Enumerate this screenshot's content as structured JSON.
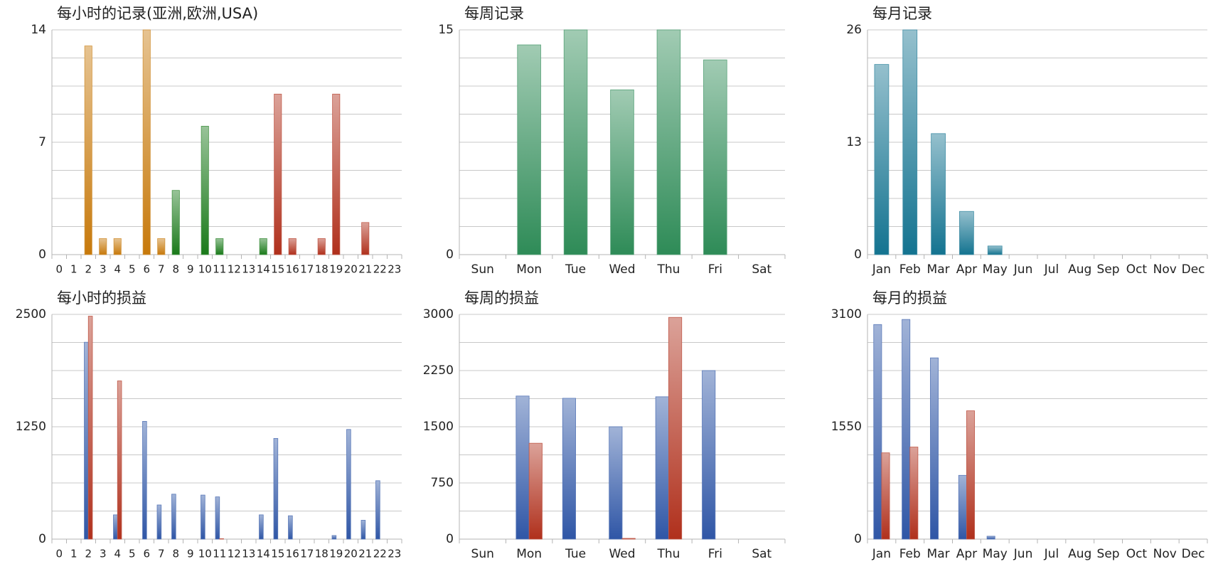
{
  "chart_data": [
    {
      "id": "hourly-records",
      "type": "bar",
      "title": "每小时的记录(亚洲,欧洲,USA)",
      "categories": [
        "0",
        "1",
        "2",
        "3",
        "4",
        "5",
        "6",
        "7",
        "8",
        "9",
        "10",
        "11",
        "12",
        "13",
        "14",
        "15",
        "16",
        "17",
        "18",
        "19",
        "20",
        "21",
        "22",
        "23"
      ],
      "yticks": [
        "0",
        "7",
        "14"
      ],
      "ylim": [
        0,
        14
      ],
      "grid": true,
      "colored_by_category": true,
      "colors": {
        "asia": "#c7790b",
        "europe": "#1a7a1a",
        "usa": "#b0301c"
      },
      "category_colors": [
        "asia",
        "asia",
        "asia",
        "asia",
        "asia",
        "asia",
        "asia",
        "asia",
        "europe",
        "europe",
        "europe",
        "europe",
        "europe",
        "europe",
        "europe",
        "usa",
        "usa",
        "usa",
        "usa",
        "usa",
        "usa",
        "usa",
        "usa",
        "usa"
      ],
      "values": [
        0,
        0,
        13,
        1,
        1,
        0,
        14,
        1,
        4,
        0,
        8,
        1,
        0,
        0,
        1,
        10,
        1,
        0,
        1,
        10,
        0,
        2,
        0,
        0
      ]
    },
    {
      "id": "weekly-records",
      "type": "bar",
      "title": "每周记录",
      "categories": [
        "Sun",
        "Mon",
        "Tue",
        "Wed",
        "Thu",
        "Fri",
        "Sat"
      ],
      "yticks": [
        "0",
        "15"
      ],
      "ylim": [
        0,
        15
      ],
      "grid": true,
      "color": "#2e8b57",
      "values": [
        0,
        14,
        15,
        11,
        15,
        13,
        0
      ]
    },
    {
      "id": "monthly-records",
      "type": "bar",
      "title": "每月记录",
      "categories": [
        "Jan",
        "Feb",
        "Mar",
        "Apr",
        "May",
        "Jun",
        "Jul",
        "Aug",
        "Sep",
        "Oct",
        "Nov",
        "Dec"
      ],
      "yticks": [
        "0",
        "13",
        "26"
      ],
      "ylim": [
        0,
        26
      ],
      "grid": true,
      "color": "#137390",
      "values": [
        22,
        26,
        14,
        5,
        1,
        0,
        0,
        0,
        0,
        0,
        0,
        0
      ]
    },
    {
      "id": "hourly-profit",
      "type": "bar",
      "title": "每小时的损益",
      "categories": [
        "0",
        "1",
        "2",
        "3",
        "4",
        "5",
        "6",
        "7",
        "8",
        "9",
        "10",
        "11",
        "12",
        "13",
        "14",
        "15",
        "16",
        "17",
        "18",
        "19",
        "20",
        "21",
        "22",
        "23"
      ],
      "yticks": [
        "0",
        "1250",
        "2500"
      ],
      "ylim": [
        0,
        2500
      ],
      "grid": true,
      "colors": {
        "blue": "#2f56a6",
        "red": "#b0301c"
      },
      "series": [
        {
          "color": "blue",
          "values": [
            0,
            0,
            2190,
            0,
            270,
            0,
            1310,
            380,
            500,
            0,
            490,
            470,
            0,
            0,
            270,
            1120,
            260,
            0,
            0,
            40,
            1220,
            210,
            650,
            0
          ]
        },
        {
          "color": "red",
          "values": [
            0,
            0,
            2480,
            0,
            1760,
            0,
            0,
            0,
            0,
            0,
            0,
            5,
            0,
            0,
            0,
            0,
            0,
            0,
            0,
            0,
            0,
            0,
            0,
            0
          ]
        }
      ]
    },
    {
      "id": "weekly-profit",
      "type": "bar",
      "title": "每周的损益",
      "categories": [
        "Sun",
        "Mon",
        "Tue",
        "Wed",
        "Thu",
        "Fri",
        "Sat"
      ],
      "yticks": [
        "0",
        "750",
        "1500",
        "2250",
        "3000"
      ],
      "ylim": [
        0,
        3000
      ],
      "grid": true,
      "colors": {
        "blue": "#2f56a6",
        "red": "#b0301c"
      },
      "series": [
        {
          "color": "blue",
          "values": [
            0,
            1910,
            1880,
            1500,
            1900,
            2250,
            0
          ]
        },
        {
          "color": "red",
          "values": [
            0,
            1280,
            0,
            10,
            2960,
            0,
            0
          ]
        }
      ]
    },
    {
      "id": "monthly-profit",
      "type": "bar",
      "title": "每月的损益",
      "categories": [
        "Jan",
        "Feb",
        "Mar",
        "Apr",
        "May",
        "Jun",
        "Jul",
        "Aug",
        "Sep",
        "Oct",
        "Nov",
        "Dec"
      ],
      "yticks": [
        "0",
        "1550",
        "3100"
      ],
      "ylim": [
        0,
        3100
      ],
      "grid": true,
      "colors": {
        "blue": "#2f56a6",
        "red": "#b0301c"
      },
      "series": [
        {
          "color": "blue",
          "values": [
            2960,
            3030,
            2500,
            880,
            40,
            0,
            0,
            0,
            0,
            0,
            0,
            0
          ]
        },
        {
          "color": "red",
          "values": [
            1190,
            1270,
            0,
            1770,
            0,
            0,
            0,
            0,
            0,
            0,
            0,
            0
          ]
        }
      ]
    }
  ]
}
